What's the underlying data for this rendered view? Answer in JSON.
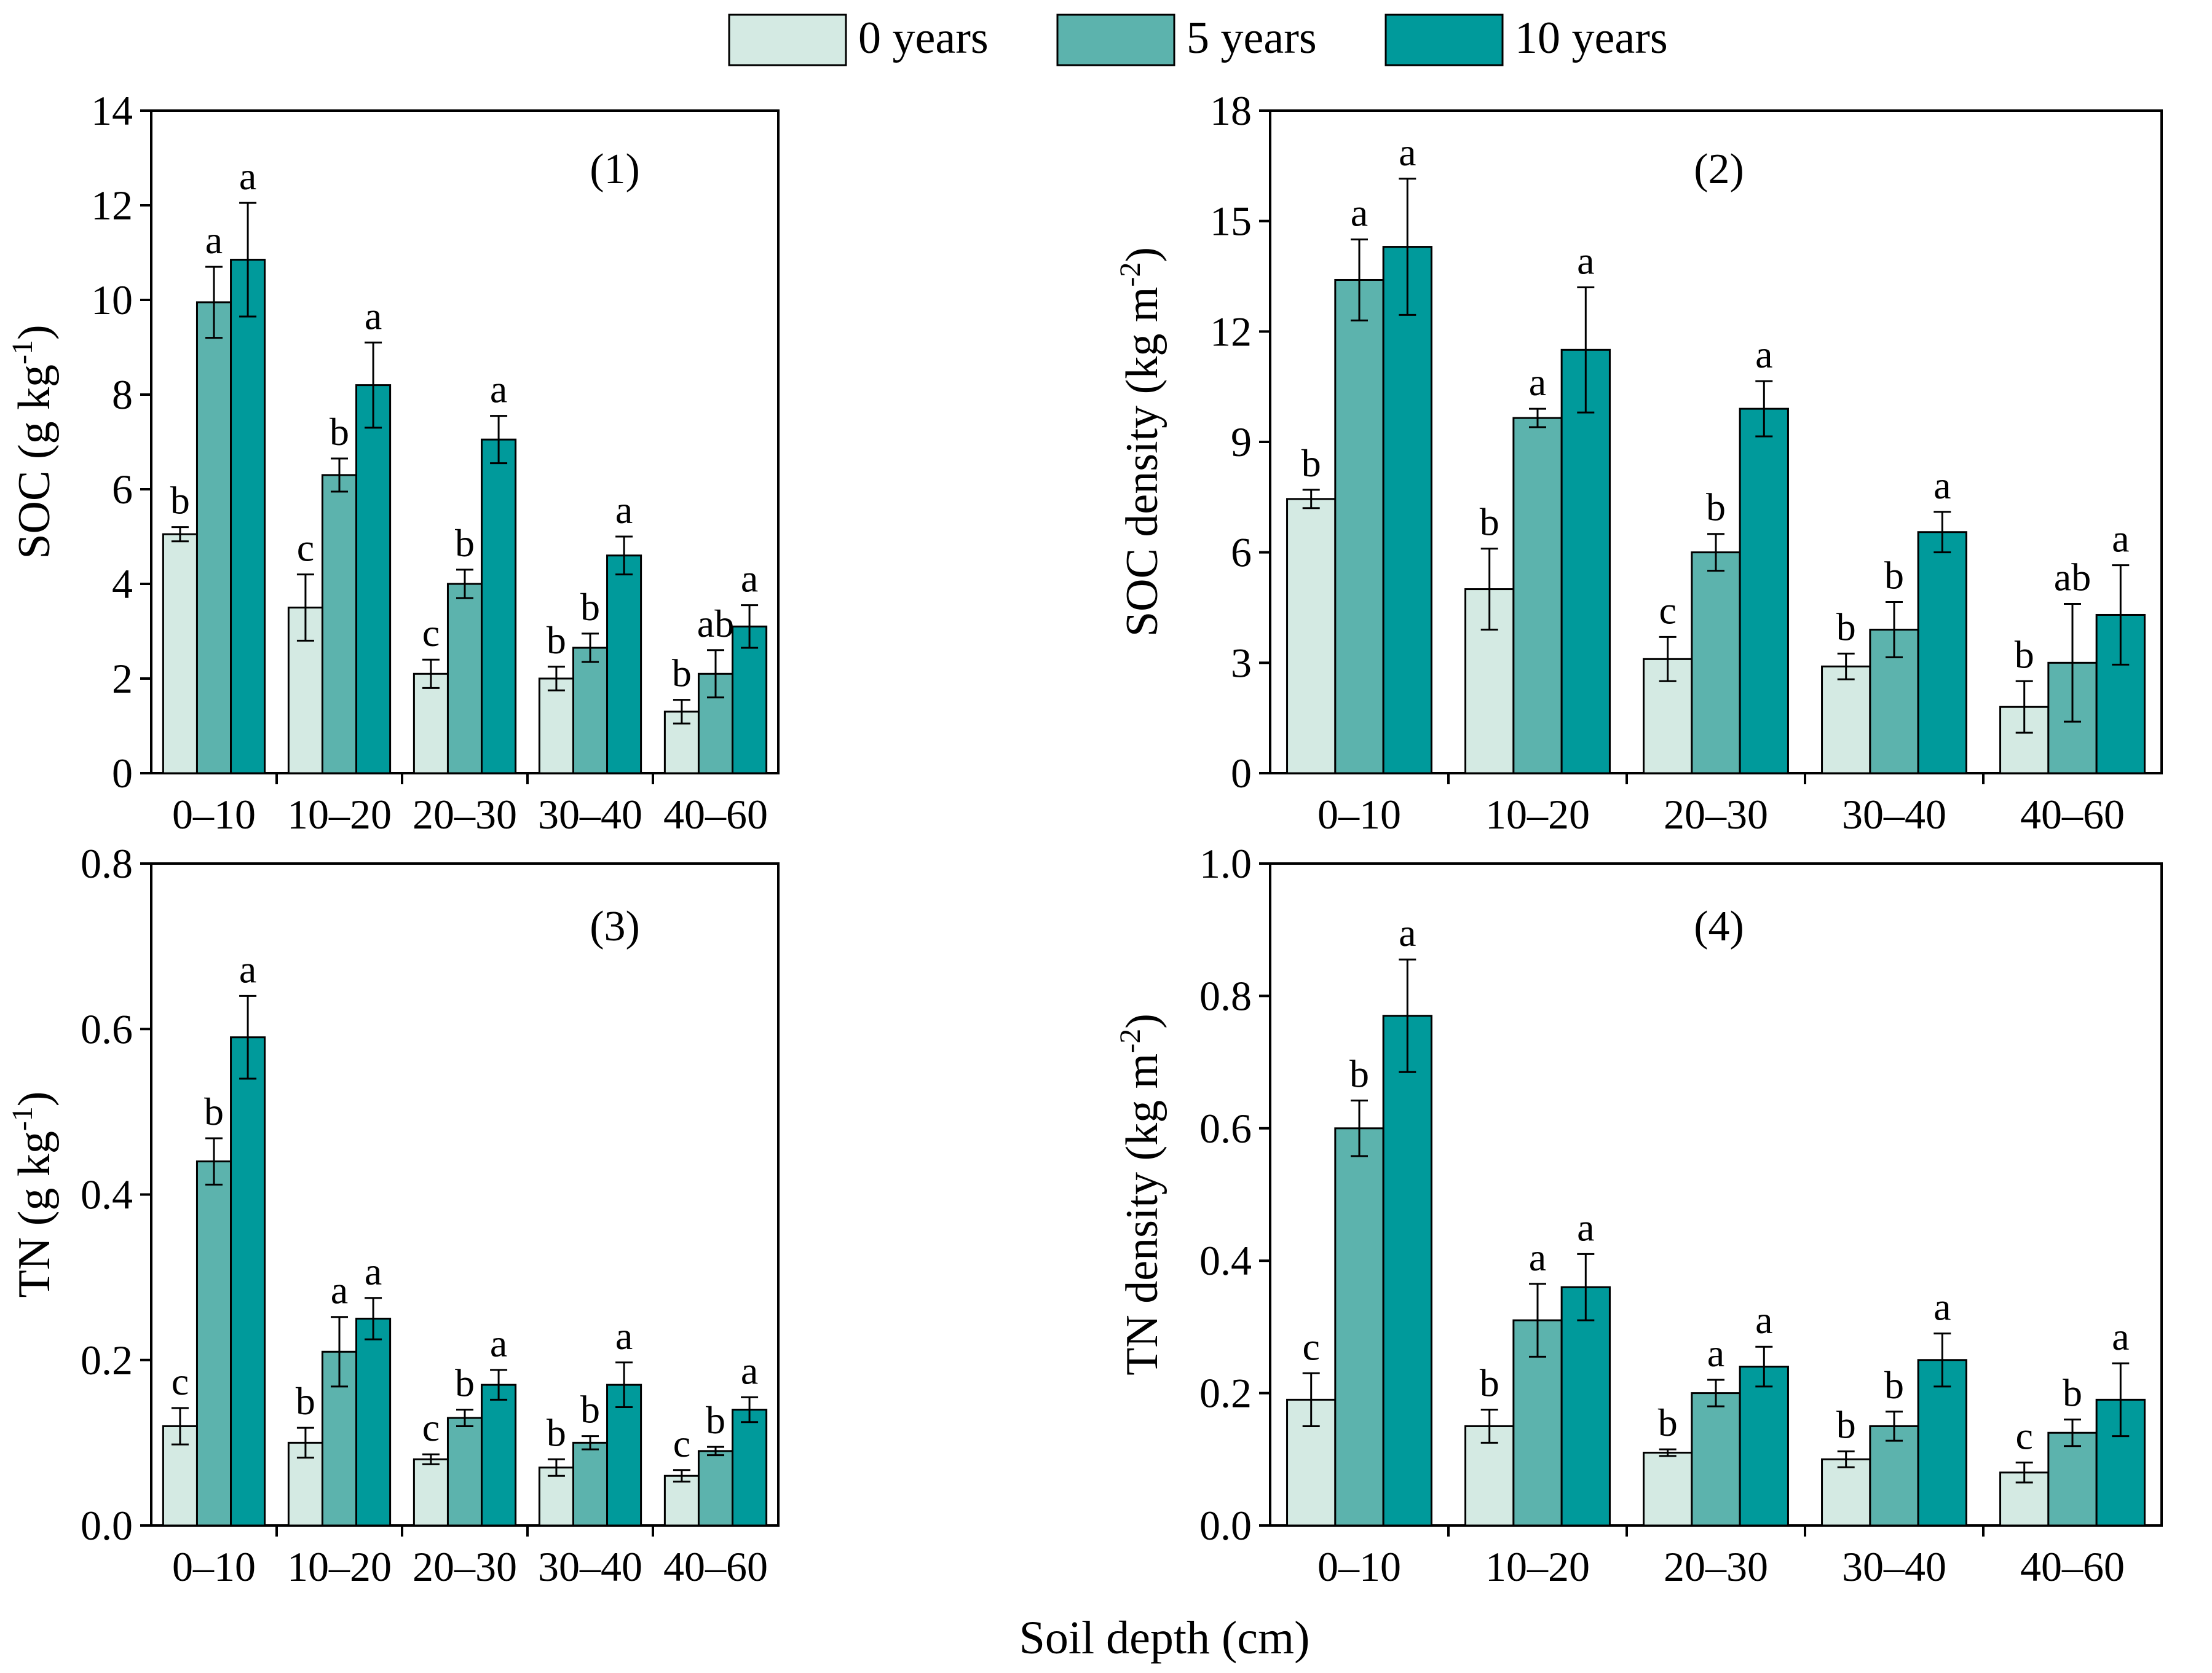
{
  "figure": {
    "xlabel": "Soil depth (cm)",
    "legend": [
      {
        "label": "0 years",
        "color": "#d4eae3"
      },
      {
        "label": "5 years",
        "color": "#5cb3ad"
      },
      {
        "label": "10 years",
        "color": "#009a9b"
      }
    ]
  },
  "chart_data": [
    {
      "type": "bar",
      "panel_label": "(1)",
      "ylabel": "SOC (g kg",
      "ylabel_sup": "-1",
      "ylabel_tail": ")",
      "categories": [
        "0–10",
        "10–20",
        "20–30",
        "30–40",
        "40–60"
      ],
      "ylim": [
        0,
        14
      ],
      "yticks": [
        0,
        2,
        4,
        6,
        8,
        10,
        12,
        14
      ],
      "tick_decimals": 0,
      "series": [
        {
          "name": "0 years",
          "values": [
            5.05,
            3.5,
            2.1,
            2.0,
            1.3
          ],
          "errors": [
            0.15,
            0.7,
            0.3,
            0.25,
            0.25
          ],
          "letters": [
            "b",
            "c",
            "c",
            "b",
            "b"
          ]
        },
        {
          "name": "5 years",
          "values": [
            9.95,
            6.3,
            4.0,
            2.65,
            2.1
          ],
          "errors": [
            0.75,
            0.35,
            0.3,
            0.3,
            0.5
          ],
          "letters": [
            "a",
            "b",
            "b",
            "b",
            "ab"
          ]
        },
        {
          "name": "10 years",
          "values": [
            10.85,
            8.2,
            7.05,
            4.6,
            3.1
          ],
          "errors": [
            1.2,
            0.9,
            0.5,
            0.4,
            0.45
          ],
          "letters": [
            "a",
            "a",
            "a",
            "a",
            "a"
          ]
        }
      ]
    },
    {
      "type": "bar",
      "panel_label": "(2)",
      "ylabel": "SOC density (kg m",
      "ylabel_sup": "-2",
      "ylabel_tail": ")",
      "categories": [
        "0–10",
        "10–20",
        "20–30",
        "30–40",
        "40–60"
      ],
      "ylim": [
        0,
        18
      ],
      "yticks": [
        0,
        3,
        6,
        9,
        12,
        15,
        18
      ],
      "tick_decimals": 0,
      "series": [
        {
          "name": "0 years",
          "values": [
            7.45,
            5.0,
            3.1,
            2.9,
            1.8
          ],
          "errors": [
            0.25,
            1.1,
            0.6,
            0.35,
            0.7
          ],
          "letters": [
            "b",
            "b",
            "c",
            "b",
            "b"
          ]
        },
        {
          "name": "5 years",
          "values": [
            13.4,
            9.65,
            6.0,
            3.9,
            3.0
          ],
          "errors": [
            1.1,
            0.25,
            0.5,
            0.75,
            1.6
          ],
          "letters": [
            "a",
            "a",
            "b",
            "b",
            "ab"
          ]
        },
        {
          "name": "10 years",
          "values": [
            14.3,
            11.5,
            9.9,
            6.55,
            4.3
          ],
          "errors": [
            1.85,
            1.7,
            0.75,
            0.55,
            1.35
          ],
          "letters": [
            "a",
            "a",
            "a",
            "a",
            "a"
          ]
        }
      ]
    },
    {
      "type": "bar",
      "panel_label": "(3)",
      "ylabel": "TN (g kg",
      "ylabel_sup": "-1",
      "ylabel_tail": ")",
      "categories": [
        "0–10",
        "10–20",
        "20–30",
        "30–40",
        "40–60"
      ],
      "ylim": [
        0,
        0.8
      ],
      "yticks": [
        0,
        0.2,
        0.4,
        0.6,
        0.8
      ],
      "tick_decimals": 1,
      "series": [
        {
          "name": "0 years",
          "values": [
            0.12,
            0.1,
            0.08,
            0.07,
            0.06
          ],
          "errors": [
            0.022,
            0.018,
            0.006,
            0.01,
            0.007
          ],
          "letters": [
            "c",
            "b",
            "c",
            "b",
            "c"
          ]
        },
        {
          "name": "5 years",
          "values": [
            0.44,
            0.21,
            0.13,
            0.1,
            0.09
          ],
          "errors": [
            0.028,
            0.042,
            0.01,
            0.008,
            0.005
          ],
          "letters": [
            "b",
            "a",
            "b",
            "b",
            "b"
          ]
        },
        {
          "name": "10 years",
          "values": [
            0.59,
            0.25,
            0.17,
            0.17,
            0.14
          ],
          "errors": [
            0.05,
            0.025,
            0.018,
            0.027,
            0.015
          ],
          "letters": [
            "a",
            "a",
            "a",
            "a",
            "a"
          ]
        }
      ]
    },
    {
      "type": "bar",
      "panel_label": "(4)",
      "ylabel": "TN density  (kg m",
      "ylabel_sup": "-2",
      "ylabel_tail": ")",
      "categories": [
        "0–10",
        "10–20",
        "20–30",
        "30–40",
        "40–60"
      ],
      "ylim": [
        0,
        1.0
      ],
      "yticks": [
        0,
        0.2,
        0.4,
        0.6,
        0.8,
        1.0
      ],
      "tick_decimals": 1,
      "series": [
        {
          "name": "0 years",
          "values": [
            0.19,
            0.15,
            0.11,
            0.1,
            0.08
          ],
          "errors": [
            0.04,
            0.025,
            0.005,
            0.012,
            0.015
          ],
          "letters": [
            "c",
            "b",
            "b",
            "b",
            "c"
          ]
        },
        {
          "name": "5 years",
          "values": [
            0.6,
            0.31,
            0.2,
            0.15,
            0.14
          ],
          "errors": [
            0.042,
            0.055,
            0.02,
            0.022,
            0.02
          ],
          "letters": [
            "b",
            "a",
            "a",
            "b",
            "b"
          ]
        },
        {
          "name": "10 years",
          "values": [
            0.77,
            0.36,
            0.24,
            0.25,
            0.19
          ],
          "errors": [
            0.085,
            0.05,
            0.03,
            0.04,
            0.055
          ],
          "letters": [
            "a",
            "a",
            "a",
            "a",
            "a"
          ]
        }
      ]
    }
  ]
}
